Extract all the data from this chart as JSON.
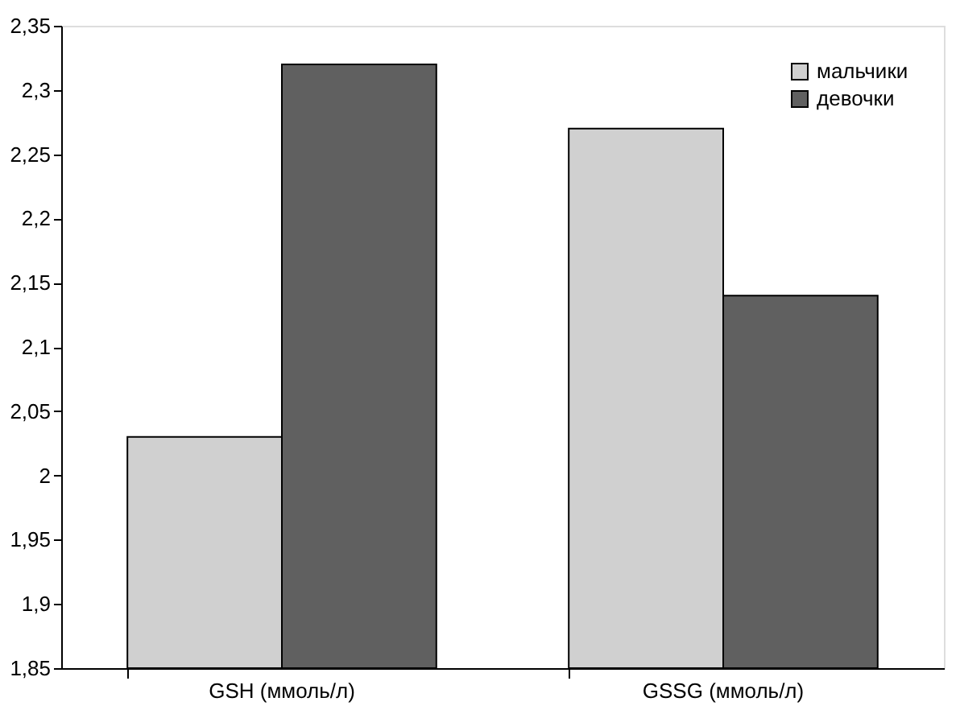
{
  "chart_data": {
    "type": "bar",
    "categories": [
      "GSH (ммоль/л)",
      "GSSG (ммоль/л)"
    ],
    "series": [
      {
        "name": "мальчики",
        "color": "#d0d0d0",
        "values": [
          2.03,
          2.27
        ]
      },
      {
        "name": "девочки",
        "color": "#606060",
        "values": [
          2.32,
          2.14
        ]
      }
    ],
    "ylim": [
      1.85,
      2.35
    ],
    "yticks": [
      {
        "value": 1.85,
        "label": "1,85"
      },
      {
        "value": 1.9,
        "label": "1,9"
      },
      {
        "value": 1.95,
        "label": "1,95"
      },
      {
        "value": 2,
        "label": "2"
      },
      {
        "value": 2.05,
        "label": "2,05"
      },
      {
        "value": 2.1,
        "label": "2,1"
      },
      {
        "value": 2.15,
        "label": "2,15"
      },
      {
        "value": 2.2,
        "label": "2,2"
      },
      {
        "value": 2.25,
        "label": "2,25"
      },
      {
        "value": 2.3,
        "label": "2,3"
      },
      {
        "value": 2.35,
        "label": "2,35"
      }
    ],
    "grid": false,
    "legend": "top right"
  }
}
